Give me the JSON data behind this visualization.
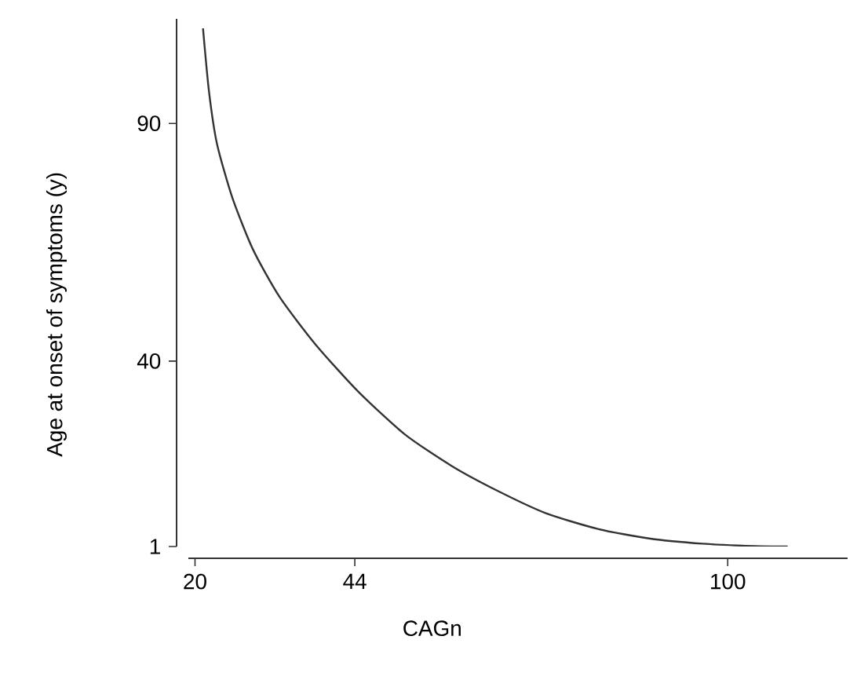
{
  "chart_data": {
    "type": "line",
    "xlabel": "CAGn",
    "ylabel": "Age at onset of symptoms (y)",
    "x": [
      21.2,
      22.1,
      23.3,
      25.6,
      28.7,
      32.7,
      38.1,
      44.5,
      51.5,
      58.6,
      65.6,
      72.7,
      80.5,
      88.2,
      96.2,
      104,
      109
    ],
    "series": [
      {
        "color": "#333333",
        "values": [
          110,
          96.7,
          85.7,
          74.4,
          63.5,
          53.5,
          43.5,
          33.6,
          24.6,
          17.9,
          12.6,
          8,
          4.7,
          2.7,
          1.6,
          1.1,
          1
        ]
      }
    ],
    "xlim": [
      19,
      118
    ],
    "ylim": [
      1,
      112
    ],
    "xticks": [
      20,
      44,
      100
    ],
    "yticks": [
      1,
      40,
      90
    ],
    "grid": false,
    "marker": "none",
    "line_style": "solid"
  }
}
